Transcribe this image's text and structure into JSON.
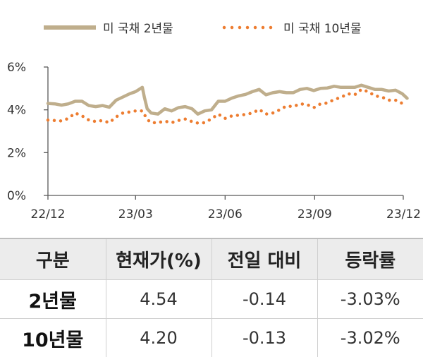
{
  "chart_data": {
    "type": "line",
    "title": "",
    "xlabel": "",
    "ylabel": "",
    "x_tick_labels": [
      "22/12",
      "23/03",
      "23/06",
      "23/09",
      "23/12"
    ],
    "y_tick_labels": [
      "0%",
      "2%",
      "4%",
      "6%"
    ],
    "ylim": [
      0,
      6
    ],
    "grid": false,
    "legend_position": "top",
    "series": [
      {
        "name": "미 국채 2년물",
        "color": "#bfae8c",
        "style": "solid",
        "points": [
          [
            "2022-12-01",
            4.3
          ],
          [
            "2022-12-08",
            4.28
          ],
          [
            "2022-12-15",
            4.22
          ],
          [
            "2022-12-22",
            4.28
          ],
          [
            "2022-12-29",
            4.4
          ],
          [
            "2023-01-05",
            4.4
          ],
          [
            "2023-01-12",
            4.2
          ],
          [
            "2023-01-19",
            4.15
          ],
          [
            "2023-01-26",
            4.2
          ],
          [
            "2023-02-02",
            4.12
          ],
          [
            "2023-02-09",
            4.45
          ],
          [
            "2023-02-16",
            4.6
          ],
          [
            "2023-02-23",
            4.75
          ],
          [
            "2023-03-01",
            4.85
          ],
          [
            "2023-03-08",
            5.05
          ],
          [
            "2023-03-10",
            4.6
          ],
          [
            "2023-03-13",
            4.05
          ],
          [
            "2023-03-17",
            3.85
          ],
          [
            "2023-03-24",
            3.8
          ],
          [
            "2023-03-31",
            4.05
          ],
          [
            "2023-04-07",
            3.95
          ],
          [
            "2023-04-14",
            4.1
          ],
          [
            "2023-04-21",
            4.15
          ],
          [
            "2023-04-28",
            4.05
          ],
          [
            "2023-05-04",
            3.8
          ],
          [
            "2023-05-11",
            3.95
          ],
          [
            "2023-05-18",
            4.0
          ],
          [
            "2023-05-25",
            4.4
          ],
          [
            "2023-06-01",
            4.4
          ],
          [
            "2023-06-08",
            4.55
          ],
          [
            "2023-06-15",
            4.65
          ],
          [
            "2023-06-22",
            4.72
          ],
          [
            "2023-06-29",
            4.85
          ],
          [
            "2023-07-06",
            4.95
          ],
          [
            "2023-07-13",
            4.7
          ],
          [
            "2023-07-20",
            4.8
          ],
          [
            "2023-07-27",
            4.85
          ],
          [
            "2023-08-03",
            4.8
          ],
          [
            "2023-08-10",
            4.8
          ],
          [
            "2023-08-17",
            4.95
          ],
          [
            "2023-08-24",
            5.0
          ],
          [
            "2023-08-31",
            4.9
          ],
          [
            "2023-09-07",
            5.0
          ],
          [
            "2023-09-14",
            5.02
          ],
          [
            "2023-09-21",
            5.1
          ],
          [
            "2023-09-28",
            5.05
          ],
          [
            "2023-10-05",
            5.05
          ],
          [
            "2023-10-12",
            5.05
          ],
          [
            "2023-10-19",
            5.15
          ],
          [
            "2023-10-26",
            5.05
          ],
          [
            "2023-11-02",
            4.95
          ],
          [
            "2023-11-09",
            4.95
          ],
          [
            "2023-11-16",
            4.88
          ],
          [
            "2023-11-23",
            4.92
          ],
          [
            "2023-11-30",
            4.75
          ],
          [
            "2023-12-05",
            4.54
          ]
        ]
      },
      {
        "name": "미 국채 10년물",
        "color": "#ed7d31",
        "style": "dotted",
        "points": [
          [
            "2022-12-01",
            3.52
          ],
          [
            "2022-12-08",
            3.5
          ],
          [
            "2022-12-15",
            3.48
          ],
          [
            "2022-12-22",
            3.6
          ],
          [
            "2022-12-29",
            3.85
          ],
          [
            "2023-01-05",
            3.72
          ],
          [
            "2023-01-12",
            3.52
          ],
          [
            "2023-01-19",
            3.45
          ],
          [
            "2023-01-26",
            3.5
          ],
          [
            "2023-02-02",
            3.4
          ],
          [
            "2023-02-09",
            3.67
          ],
          [
            "2023-02-16",
            3.85
          ],
          [
            "2023-02-23",
            3.9
          ],
          [
            "2023-03-01",
            3.95
          ],
          [
            "2023-03-08",
            3.95
          ],
          [
            "2023-03-13",
            3.55
          ],
          [
            "2023-03-17",
            3.4
          ],
          [
            "2023-03-24",
            3.4
          ],
          [
            "2023-03-31",
            3.47
          ],
          [
            "2023-04-07",
            3.4
          ],
          [
            "2023-04-14",
            3.5
          ],
          [
            "2023-04-21",
            3.57
          ],
          [
            "2023-04-28",
            3.45
          ],
          [
            "2023-05-04",
            3.38
          ],
          [
            "2023-05-11",
            3.4
          ],
          [
            "2023-05-18",
            3.58
          ],
          [
            "2023-05-25",
            3.8
          ],
          [
            "2023-06-01",
            3.6
          ],
          [
            "2023-06-08",
            3.72
          ],
          [
            "2023-06-15",
            3.75
          ],
          [
            "2023-06-22",
            3.78
          ],
          [
            "2023-06-29",
            3.85
          ],
          [
            "2023-07-06",
            4.02
          ],
          [
            "2023-07-13",
            3.8
          ],
          [
            "2023-07-20",
            3.85
          ],
          [
            "2023-07-27",
            4.0
          ],
          [
            "2023-08-03",
            4.18
          ],
          [
            "2023-08-10",
            4.15
          ],
          [
            "2023-08-17",
            4.28
          ],
          [
            "2023-08-24",
            4.25
          ],
          [
            "2023-08-31",
            4.1
          ],
          [
            "2023-09-07",
            4.28
          ],
          [
            "2023-09-14",
            4.32
          ],
          [
            "2023-09-21",
            4.48
          ],
          [
            "2023-09-28",
            4.58
          ],
          [
            "2023-10-05",
            4.75
          ],
          [
            "2023-10-12",
            4.7
          ],
          [
            "2023-10-19",
            4.95
          ],
          [
            "2023-10-26",
            4.85
          ],
          [
            "2023-11-02",
            4.65
          ],
          [
            "2023-11-09",
            4.6
          ],
          [
            "2023-11-16",
            4.45
          ],
          [
            "2023-11-23",
            4.45
          ],
          [
            "2023-11-30",
            4.3
          ],
          [
            "2023-12-05",
            4.2
          ]
        ]
      }
    ]
  },
  "table": {
    "headers": [
      "구분",
      "현재가(%)",
      "전일 대비",
      "등락률"
    ],
    "rows": [
      [
        "2년물",
        "4.54",
        "-0.14",
        "-3.03%"
      ],
      [
        "10년물",
        "4.20",
        "-0.13",
        "-3.02%"
      ]
    ]
  }
}
